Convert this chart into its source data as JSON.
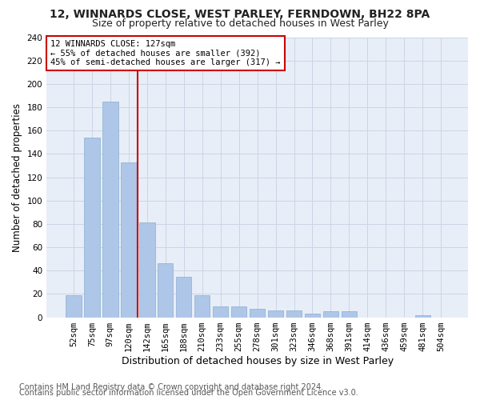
{
  "title1": "12, WINNARDS CLOSE, WEST PARLEY, FERNDOWN, BH22 8PA",
  "title2": "Size of property relative to detached houses in West Parley",
  "xlabel": "Distribution of detached houses by size in West Parley",
  "ylabel": "Number of detached properties",
  "categories": [
    "52sqm",
    "75sqm",
    "97sqm",
    "120sqm",
    "142sqm",
    "165sqm",
    "188sqm",
    "210sqm",
    "233sqm",
    "255sqm",
    "278sqm",
    "301sqm",
    "323sqm",
    "346sqm",
    "368sqm",
    "391sqm",
    "414sqm",
    "436sqm",
    "459sqm",
    "481sqm",
    "504sqm"
  ],
  "values": [
    19,
    154,
    185,
    133,
    81,
    46,
    35,
    19,
    9,
    9,
    7,
    6,
    6,
    3,
    5,
    5,
    0,
    0,
    0,
    2,
    0
  ],
  "bar_color": "#aec6e8",
  "bar_edge_color": "#8ab0d0",
  "vline_x": 3.5,
  "vline_color": "#cc0000",
  "annotation_text": "12 WINNARDS CLOSE: 127sqm\n← 55% of detached houses are smaller (392)\n45% of semi-detached houses are larger (317) →",
  "annotation_box_color": "#ffffff",
  "annotation_box_edge": "#cc0000",
  "ylim": [
    0,
    240
  ],
  "yticks": [
    0,
    20,
    40,
    60,
    80,
    100,
    120,
    140,
    160,
    180,
    200,
    220,
    240
  ],
  "grid_color": "#ccd5e5",
  "bg_color": "#e8eef8",
  "footer1": "Contains HM Land Registry data © Crown copyright and database right 2024.",
  "footer2": "Contains public sector information licensed under the Open Government Licence v3.0.",
  "title1_fontsize": 10,
  "title2_fontsize": 9,
  "xlabel_fontsize": 9,
  "ylabel_fontsize": 8.5,
  "tick_fontsize": 7.5,
  "footer_fontsize": 7
}
